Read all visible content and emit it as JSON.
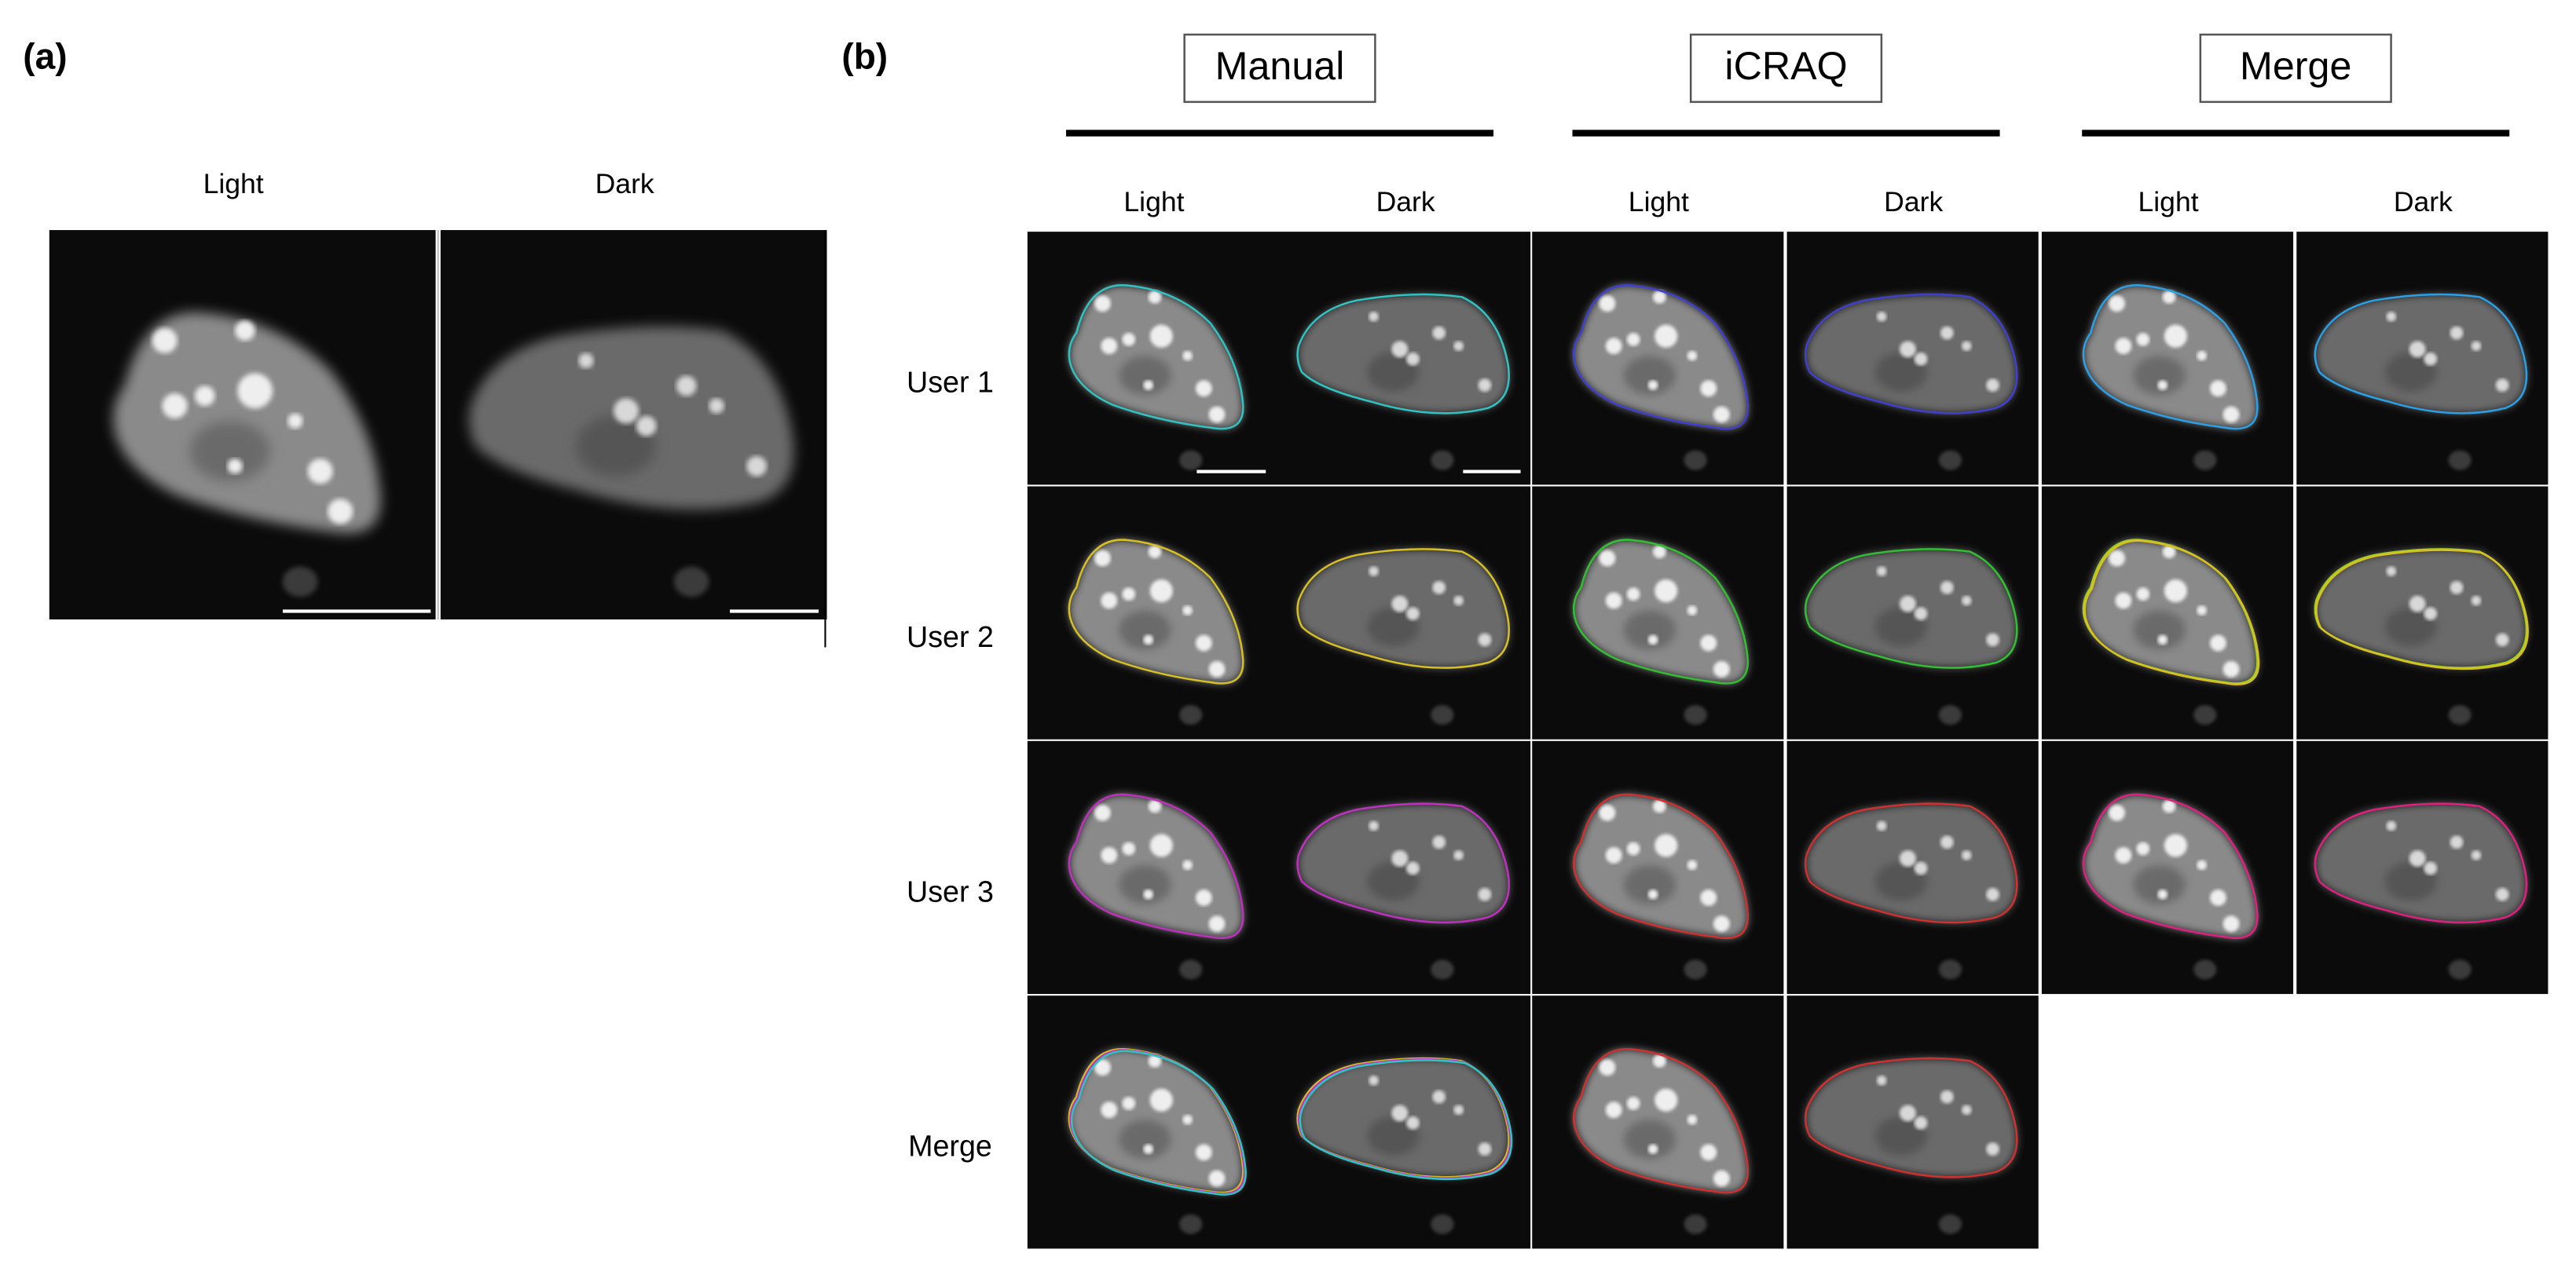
{
  "panel_a": {
    "label": "(a)",
    "columns": [
      "Light",
      "Dark"
    ]
  },
  "panel_b": {
    "label": "(b)",
    "groups": [
      {
        "title": "Manual",
        "columns": [
          "Light",
          "Dark"
        ]
      },
      {
        "title": "iCRAQ",
        "columns": [
          "Light",
          "Dark"
        ]
      },
      {
        "title": "Merge",
        "columns": [
          "Light",
          "Dark"
        ]
      }
    ],
    "rows": [
      "User 1",
      "User 2",
      "User 3",
      "Merge"
    ]
  }
}
